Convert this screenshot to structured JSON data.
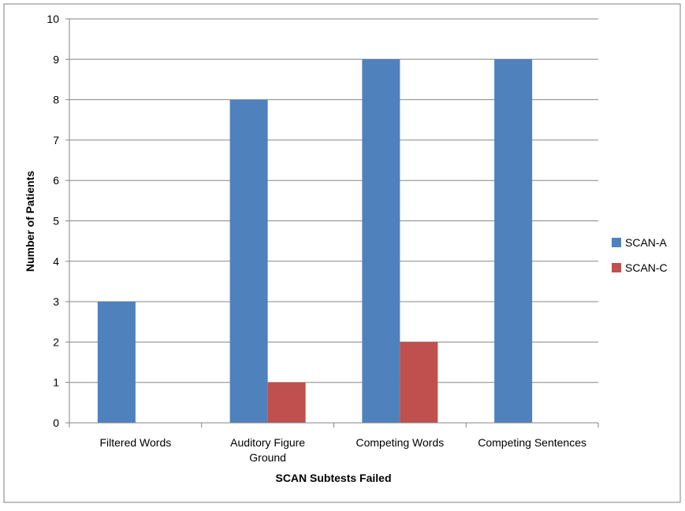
{
  "chart_data": {
    "type": "bar",
    "title": "",
    "xlabel": "SCAN Subtests Failed",
    "ylabel": "Number of Patients",
    "categories": [
      [
        "Filtered Words"
      ],
      [
        "Auditory Figure",
        "Ground"
      ],
      [
        "Competing Words"
      ],
      [
        "Competing Sentences"
      ]
    ],
    "series": [
      {
        "name": "SCAN-A",
        "color": "#4F81BD",
        "values": [
          3,
          8,
          9,
          9
        ]
      },
      {
        "name": "SCAN-C",
        "color": "#C0504D",
        "values": [
          0,
          1,
          2,
          0
        ]
      }
    ],
    "ylim": [
      0,
      10
    ],
    "yticks": [
      0,
      1,
      2,
      3,
      4,
      5,
      6,
      7,
      8,
      9,
      10
    ],
    "grid": true,
    "legend_position": "right"
  }
}
